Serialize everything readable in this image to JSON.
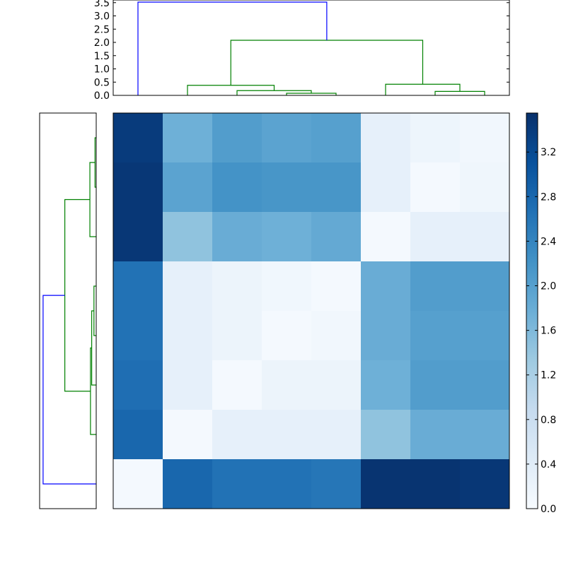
{
  "chart_data": [
    {
      "type": "dendrogram",
      "orientation": "top",
      "ylim": [
        0,
        3.6
      ],
      "yticks": [
        "0.0",
        "0.5",
        "1.0",
        "1.5",
        "2.0",
        "2.5",
        "3.0",
        "3.5"
      ],
      "leaf_count": 8,
      "links": [
        {
          "x": [
            6.5,
            6.5,
            7.5,
            7.5
          ],
          "y": [
            0,
            0.15,
            0.15,
            0
          ]
        },
        {
          "x": [
            5.5,
            5.5,
            7.0,
            7.0
          ],
          "y": [
            0,
            0.42,
            0.42,
            0.15
          ]
        },
        {
          "x": [
            3.5,
            3.5,
            4.5,
            4.5
          ],
          "y": [
            0,
            0.08,
            0.08,
            0
          ]
        },
        {
          "x": [
            2.5,
            2.5,
            4.0,
            4.0
          ],
          "y": [
            0,
            0.18,
            0.18,
            0.08
          ]
        },
        {
          "x": [
            1.5,
            1.5,
            3.25,
            3.25
          ],
          "y": [
            0,
            0.38,
            0.38,
            0.18
          ]
        },
        {
          "x": [
            2.375,
            2.375,
            6.25,
            6.25
          ],
          "y": [
            0.38,
            2.08,
            2.08,
            0.42
          ]
        },
        {
          "x": [
            0.5,
            0.5,
            4.3125,
            4.3125
          ],
          "y": [
            0,
            3.52,
            3.52,
            2.08
          ],
          "color": "blue"
        }
      ]
    },
    {
      "type": "dendrogram",
      "orientation": "left",
      "xlim": [
        0,
        3.6
      ],
      "leaf_count": 8,
      "links": [
        {
          "y": [
            0.5,
            0.5,
            1.5,
            1.5
          ],
          "x": [
            0,
            0.08,
            0.08,
            0
          ]
        },
        {
          "y": [
            1.0,
            1.0,
            2.5,
            2.5
          ],
          "x": [
            0.08,
            0.42,
            0.42,
            0
          ]
        },
        {
          "y": [
            3.5,
            3.5,
            4.5,
            4.5
          ],
          "x": [
            0,
            0.15,
            0.15,
            0
          ]
        },
        {
          "y": [
            4.0,
            4.0,
            5.5,
            5.5
          ],
          "x": [
            0.15,
            0.3,
            0.3,
            0
          ]
        },
        {
          "y": [
            4.75,
            4.75,
            6.5,
            6.5
          ],
          "x": [
            0.3,
            0.38,
            0.38,
            0
          ]
        },
        {
          "y": [
            1.75,
            1.75,
            5.625,
            5.625
          ],
          "x": [
            0.42,
            2.08,
            2.08,
            0.38
          ]
        },
        {
          "y": [
            3.6875,
            3.6875,
            7.5,
            7.5
          ],
          "x": [
            2.08,
            3.52,
            3.52,
            0
          ],
          "color": "blue"
        }
      ]
    },
    {
      "type": "heatmap",
      "rows": 8,
      "cols": 8,
      "values": [
        [
          3.4,
          1.75,
          2.05,
          1.95,
          2.0,
          0.3,
          0.18,
          0.1
        ],
        [
          3.45,
          1.95,
          2.2,
          2.15,
          2.15,
          0.3,
          0.05,
          0.15
        ],
        [
          3.45,
          1.45,
          1.8,
          1.75,
          1.85,
          0.05,
          0.3,
          0.3
        ],
        [
          2.65,
          0.3,
          0.2,
          0.12,
          0.05,
          1.8,
          2.05,
          2.05
        ],
        [
          2.65,
          0.3,
          0.2,
          0.05,
          0.1,
          1.8,
          2.0,
          2.0
        ],
        [
          2.7,
          0.3,
          0.05,
          0.2,
          0.2,
          1.75,
          2.05,
          2.05
        ],
        [
          2.8,
          0.05,
          0.3,
          0.3,
          0.3,
          1.45,
          1.8,
          1.8
        ],
        [
          0.05,
          2.8,
          2.65,
          2.65,
          2.6,
          3.5,
          3.5,
          3.45
        ]
      ],
      "vmin": 0,
      "vmax": 3.55,
      "colormap": "Blues",
      "colorbar_ticks": [
        "0.0",
        "0.4",
        "0.8",
        "1.2",
        "1.6",
        "2.0",
        "2.4",
        "2.8",
        "3.2"
      ]
    }
  ]
}
